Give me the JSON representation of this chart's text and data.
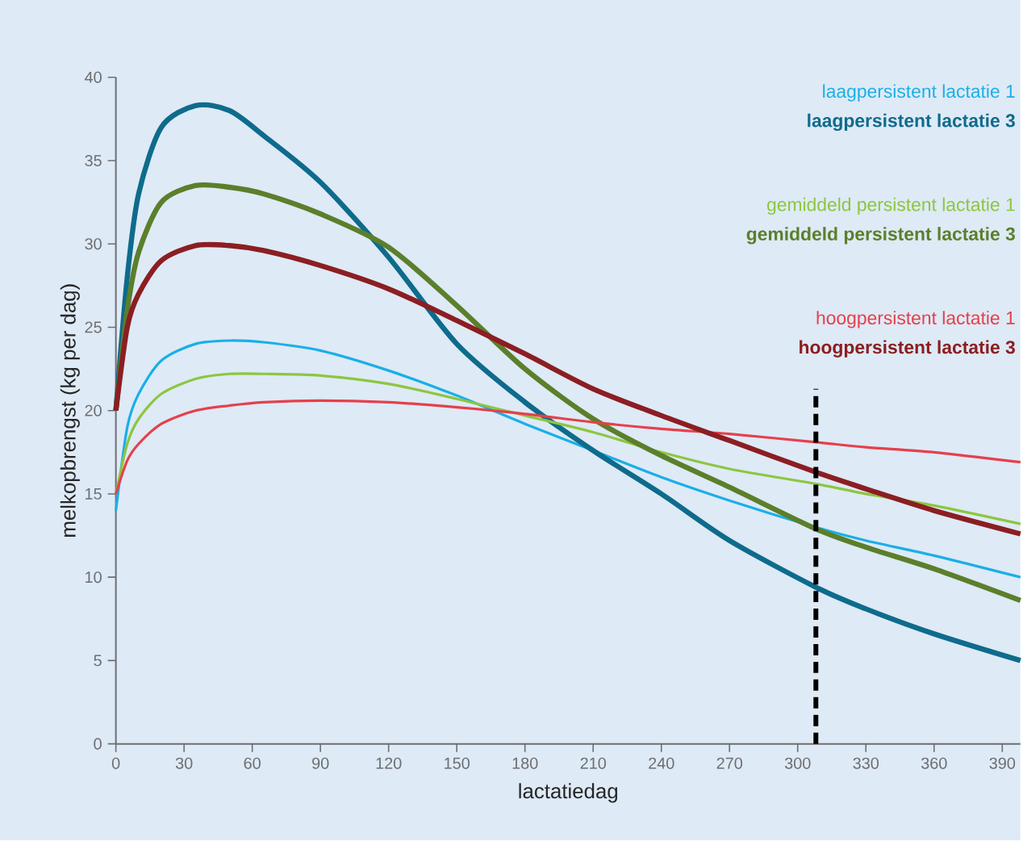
{
  "chart_data": {
    "type": "line",
    "xlabel": "lactatiedag",
    "ylabel": "melkopbrengst (kg per dag)",
    "xlim": [
      0,
      398
    ],
    "ylim": [
      0,
      40
    ],
    "xticks": [
      0,
      30,
      60,
      90,
      120,
      150,
      180,
      210,
      240,
      270,
      300,
      330,
      360,
      390
    ],
    "yticks": [
      0,
      5,
      10,
      15,
      20,
      25,
      30,
      35,
      40
    ],
    "legend": "top right",
    "x": [
      0,
      5,
      10,
      20,
      35,
      50,
      65,
      90,
      120,
      150,
      180,
      210,
      240,
      270,
      308,
      330,
      360,
      398
    ],
    "series": [
      {
        "name": "laagpersistent lactatie 1",
        "color": "#1aafe6",
        "values": [
          14,
          19,
          21,
          23,
          24,
          24.2,
          24.1,
          23.6,
          22.4,
          20.9,
          19.2,
          17.6,
          16.0,
          14.6,
          13.0,
          12.2,
          11.3,
          10.0
        ]
      },
      {
        "name": "laagpersistent lactatie 3",
        "color": "#0e6b8c",
        "values": [
          20,
          28,
          33,
          37,
          38.3,
          38,
          36.5,
          33.7,
          29.2,
          24,
          20.5,
          17.6,
          15.0,
          12.2,
          9.4,
          8.1,
          6.6,
          5.0
        ]
      },
      {
        "name": "gemiddeld persistent lactatie 1",
        "color": "#8dc63f",
        "values": [
          15,
          18,
          19.5,
          21,
          21.9,
          22.2,
          22.2,
          22.1,
          21.6,
          20.7,
          19.7,
          18.7,
          17.5,
          16.5,
          15.6,
          15.0,
          14.3,
          13.2
        ]
      },
      {
        "name": "gemiddeld persistent lactatie 3",
        "color": "#5b7f2b",
        "values": [
          20,
          26,
          29.5,
          32.5,
          33.5,
          33.4,
          33,
          31.8,
          29.8,
          26.3,
          22.5,
          19.5,
          17.3,
          15.4,
          12.9,
          11.8,
          10.5,
          8.6
        ]
      },
      {
        "name": "hoogpersistent lactatie 1",
        "color": "#e5404b",
        "values": [
          15,
          17,
          18,
          19.2,
          20,
          20.3,
          20.5,
          20.6,
          20.5,
          20.2,
          19.8,
          19.3,
          18.9,
          18.6,
          18.1,
          17.8,
          17.5,
          16.9
        ]
      },
      {
        "name": "hoogpersistent lactatie 3",
        "color": "#8b1e22",
        "values": [
          20,
          25,
          27,
          29,
          29.9,
          29.9,
          29.6,
          28.7,
          27.3,
          25.4,
          23.4,
          21.3,
          19.7,
          18.2,
          16.3,
          15.3,
          14.0,
          12.6
        ]
      },
      {
        "color": "#000000",
        "x": [
          308,
          308
        ],
        "values": [
          0,
          21.3
        ],
        "line_style": "dashed"
      }
    ]
  }
}
